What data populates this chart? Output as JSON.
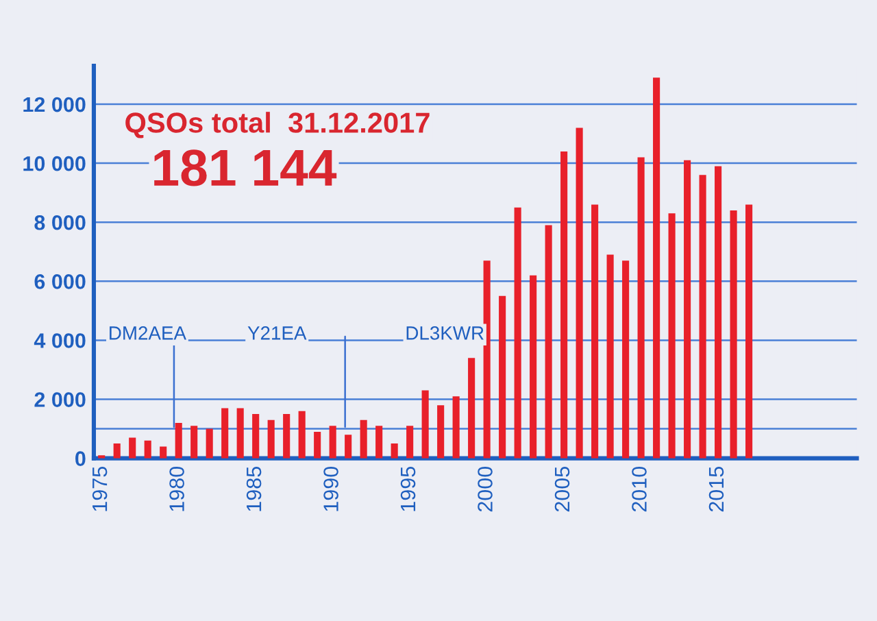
{
  "chart_data": {
    "type": "bar",
    "title": "QSOs total  31.12.2017",
    "subtitle": "181 144",
    "x": [
      1975,
      1976,
      1977,
      1978,
      1979,
      1980,
      1981,
      1982,
      1983,
      1984,
      1985,
      1986,
      1987,
      1988,
      1989,
      1990,
      1991,
      1992,
      1993,
      1994,
      1995,
      1996,
      1997,
      1998,
      1999,
      2000,
      2001,
      2002,
      2003,
      2004,
      2005,
      2006,
      2007,
      2008,
      2009,
      2010,
      2011,
      2012,
      2013,
      2014,
      2015,
      2016,
      2017
    ],
    "series": [
      {
        "color": "#e8202a",
        "values": [
          100,
          500,
          700,
          600,
          400,
          1200,
          1100,
          1000,
          1700,
          1700,
          1500,
          1300,
          1500,
          1600,
          900,
          1100,
          800,
          1300,
          1100,
          500,
          1100,
          2300,
          1800,
          2100,
          3400,
          6700,
          5500,
          8500,
          6200,
          7900,
          10400,
          11200,
          8600,
          6900,
          6700,
          10200,
          12900,
          8300,
          10100,
          9600,
          9900,
          8400,
          8600
        ]
      }
    ],
    "xlim": [
      1974.5,
      2024
    ],
    "xticks": [
      1975,
      1980,
      1985,
      1990,
      1995,
      2000,
      2005,
      2010,
      2015
    ],
    "ylim": [
      0,
      13300
    ],
    "yticks": [
      0,
      {
        "value": 1000,
        "label": null
      },
      {
        "value": 2000,
        "label": "2 000"
      },
      {
        "value": 4000,
        "label": "4 000"
      },
      {
        "value": 6000,
        "label": "6 000"
      },
      {
        "value": 8000,
        "label": "8 000"
      },
      {
        "value": 10000,
        "label": "10 000"
      },
      {
        "value": 12000,
        "label": "12 000"
      }
    ],
    "grid": "y",
    "ref_lines": [
      {
        "axis": "x",
        "value": 1979.7,
        "color": "#3a6fd0"
      },
      {
        "axis": "x",
        "value": 1990.8,
        "color": "#3a6fd0"
      }
    ],
    "annotations": [
      "DM2AEA",
      "Y21EA",
      "DL3KWR"
    ]
  }
}
